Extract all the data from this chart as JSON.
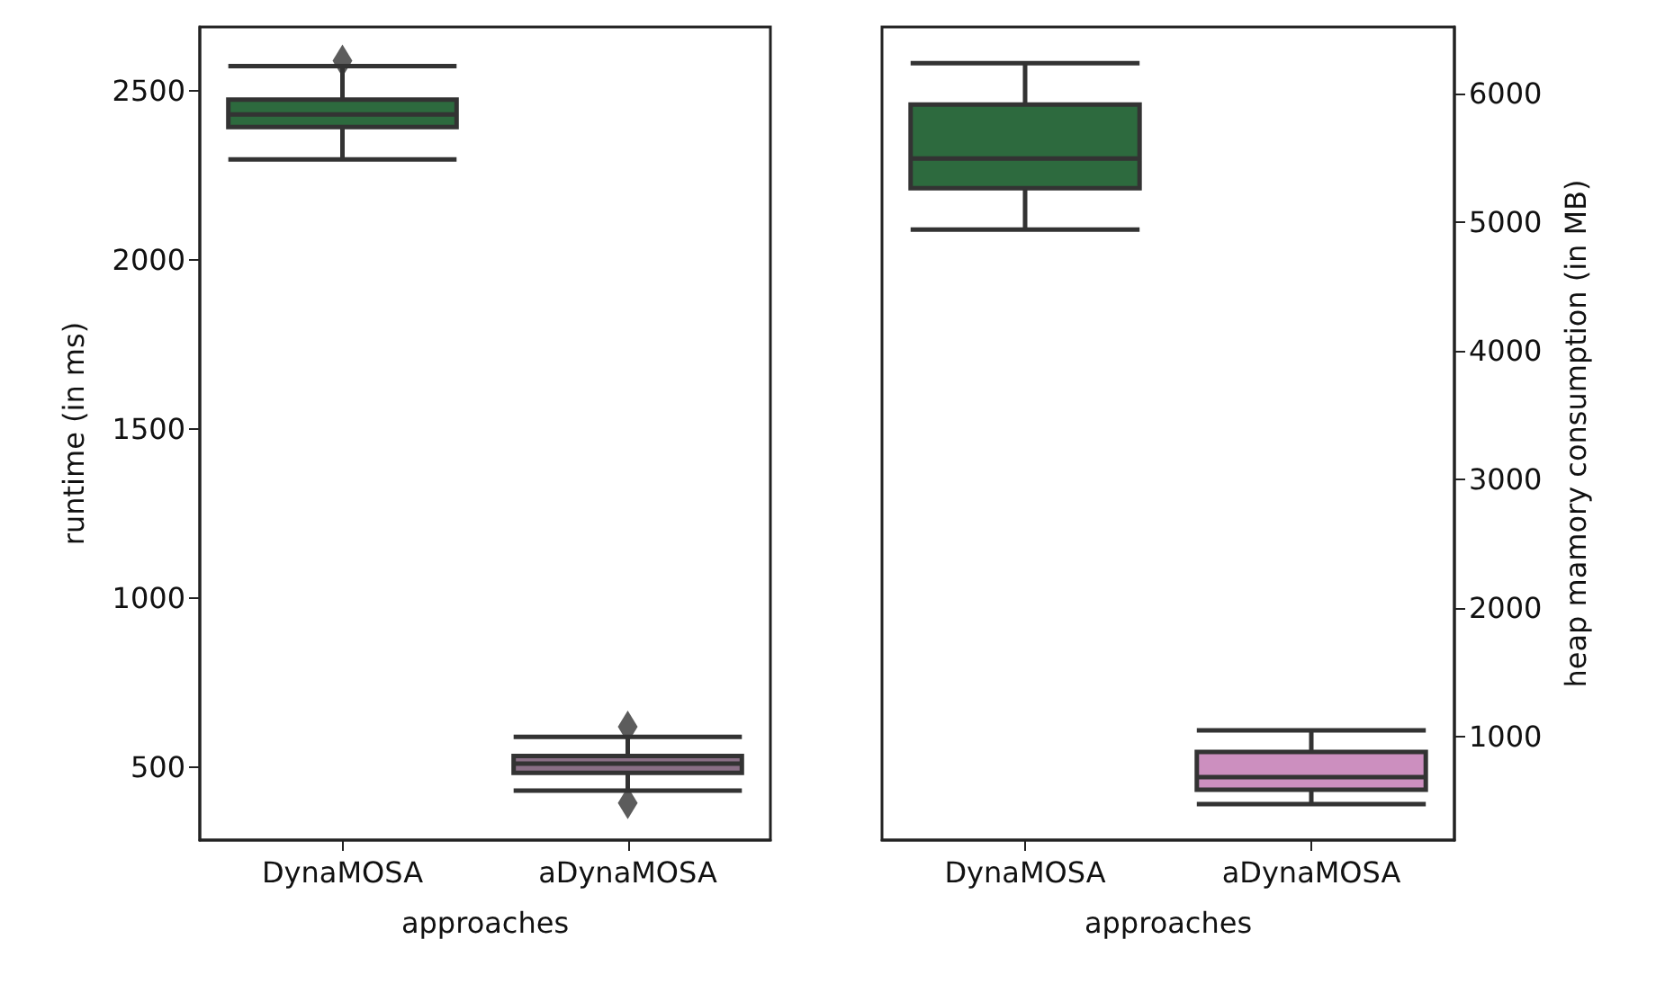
{
  "chart_data": [
    {
      "type": "box",
      "categories": [
        "DynaMOSA",
        "aDynaMOSA"
      ],
      "xlabel": "approaches",
      "ylabel": "runtime (in ms)",
      "ylim": [
        285,
        2690
      ],
      "yticks": [
        500,
        1000,
        1500,
        2000,
        2500
      ],
      "series": [
        {
          "colors": [
            "#2d6a3e",
            "#8a6f86"
          ],
          "boxes": [
            {
              "low": 2298,
              "q1": 2394,
              "median": 2431,
              "q3": 2475,
              "high": 2574,
              "outliers": [
                2590
              ]
            },
            {
              "low": 431,
              "q1": 484,
              "median": 511,
              "q3": 534,
              "high": 590,
              "outliers": [
                620,
                395
              ]
            }
          ]
        }
      ]
    },
    {
      "type": "box",
      "categories": [
        "DynaMOSA",
        "aDynaMOSA"
      ],
      "xlabel": "approaches",
      "y2label": "heap mamory consumption (in MB)",
      "y2lim": [
        195,
        6520
      ],
      "y2ticks": [
        1000,
        2000,
        3000,
        4000,
        5000,
        6000
      ],
      "series": [
        {
          "axis": "y2",
          "colors": [
            "#2d6a3e",
            "#cc8fbf"
          ],
          "boxes": [
            {
              "low": 4944,
              "q1": 5266,
              "median": 5496,
              "q3": 5916,
              "high": 6238
            },
            {
              "low": 475,
              "q1": 587,
              "median": 685,
              "q3": 881,
              "high": 1049
            }
          ]
        }
      ]
    }
  ]
}
